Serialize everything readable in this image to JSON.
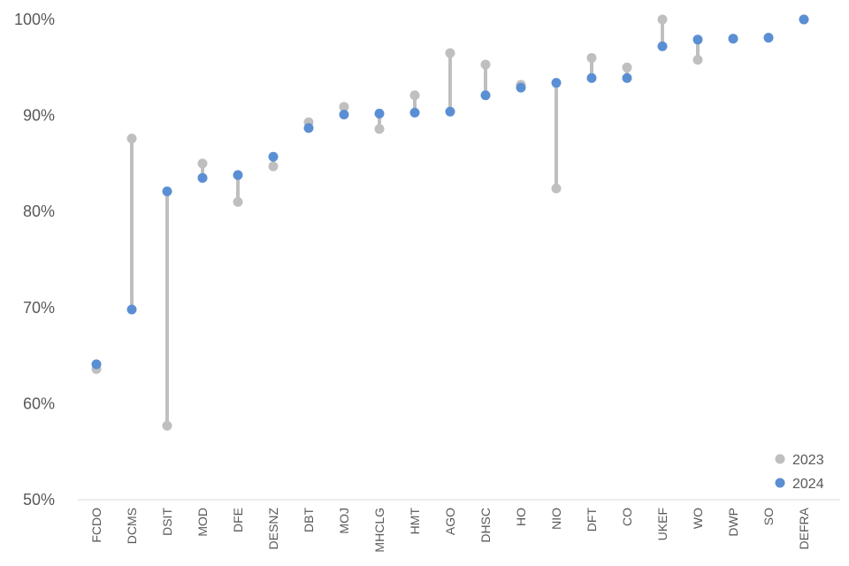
{
  "chart_data": {
    "type": "dumbbell",
    "categories": [
      "FCDO",
      "DCMS",
      "DSIT",
      "MOD",
      "DFE",
      "DESNZ",
      "DBT",
      "MOJ",
      "MHCLG",
      "HMT",
      "AGO",
      "DHSC",
      "HO",
      "NIO",
      "DFT",
      "CO",
      "UKEF",
      "WO",
      "DWP",
      "SO",
      "DEFRA"
    ],
    "series": [
      {
        "name": "2023",
        "color": "#bfbfbf",
        "values": [
          63.6,
          87.6,
          57.7,
          85.0,
          81.0,
          84.7,
          89.3,
          90.9,
          88.6,
          92.1,
          96.5,
          95.3,
          93.2,
          82.4,
          96.0,
          95.0,
          100.0,
          95.8,
          98.0,
          98.1,
          100.0
        ]
      },
      {
        "name": "2024",
        "color": "#5b8fd4",
        "values": [
          64.1,
          69.8,
          82.1,
          83.5,
          83.8,
          85.7,
          88.7,
          90.1,
          90.2,
          90.3,
          90.4,
          92.1,
          92.9,
          93.4,
          93.9,
          93.9,
          97.2,
          97.9,
          98.0,
          98.1,
          100.0
        ]
      }
    ],
    "connector_color": "#bfbfbf",
    "ylim": [
      50,
      100
    ],
    "yticks": [
      "50%",
      "60%",
      "70%",
      "80%",
      "90%",
      "100%"
    ],
    "ytick_values": [
      50,
      60,
      70,
      80,
      90,
      100
    ],
    "legend": {
      "position": "bottom-right",
      "entries": [
        "2023",
        "2024"
      ]
    },
    "grid": false
  }
}
